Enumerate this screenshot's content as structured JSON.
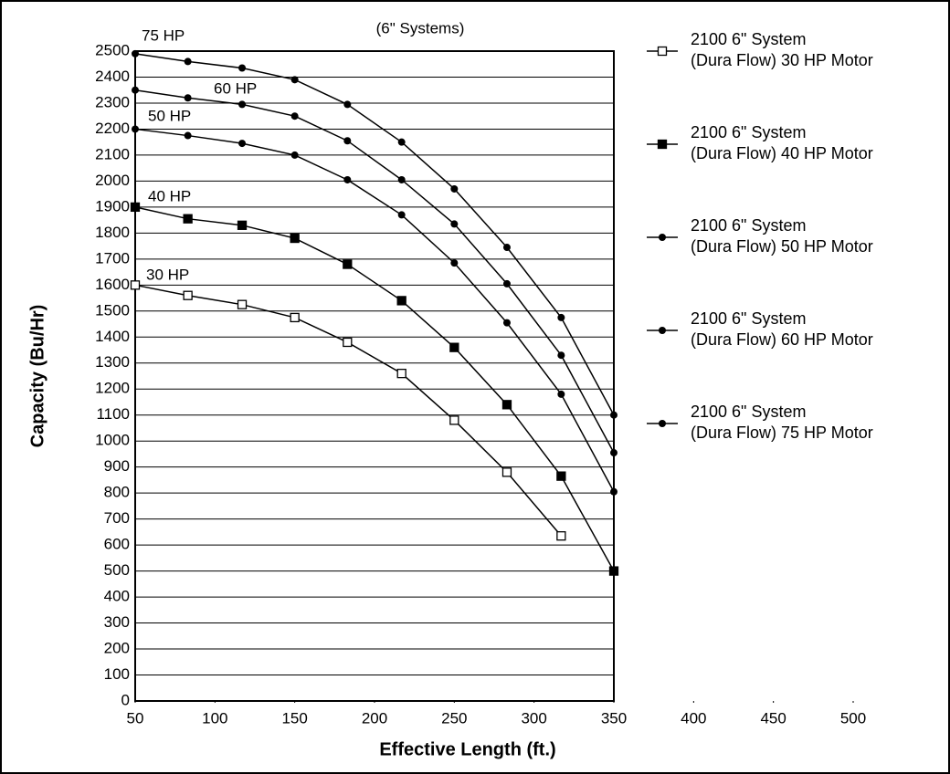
{
  "chart_data": {
    "type": "line",
    "title": "(6\" Systems)",
    "x_label": "Effective Length (ft.)",
    "y_label": "Capacity (Bu/Hr)",
    "x": [
      50,
      83,
      117,
      150,
      183,
      217,
      250,
      283,
      317,
      350
    ],
    "xlim": [
      50,
      500
    ],
    "xticks": [
      50,
      100,
      150,
      200,
      250,
      300,
      350,
      400,
      450,
      500
    ],
    "ylim": [
      0,
      2500
    ],
    "yticks": [
      0,
      100,
      200,
      300,
      400,
      500,
      600,
      700,
      800,
      900,
      1000,
      1100,
      1200,
      1300,
      1400,
      1500,
      1600,
      1700,
      1800,
      1900,
      2000,
      2100,
      2200,
      2300,
      2400,
      2500
    ],
    "grid": true,
    "series": [
      {
        "name": "2100 6\" System\n(Dura Flow) 30 HP Motor",
        "color": "#000000",
        "marker": "open-square",
        "annotation": "30 HP",
        "values": [
          1600,
          1560,
          1525,
          1475,
          1380,
          1260,
          1080,
          880,
          635,
          null
        ]
      },
      {
        "name": "2100 6\" System\n(Dura Flow) 40 HP Motor",
        "color": "#000000",
        "marker": "square",
        "annotation": "40 HP",
        "values": [
          1900,
          1855,
          1830,
          1780,
          1680,
          1540,
          1360,
          1140,
          865,
          500
        ]
      },
      {
        "name": "2100 6\" System\n(Dura Flow) 50 HP Motor",
        "color": "#000000",
        "marker": "circle",
        "annotation": "50 HP",
        "values": [
          2200,
          2175,
          2145,
          2100,
          2005,
          1870,
          1685,
          1455,
          1180,
          805
        ]
      },
      {
        "name": "2100 6\" System\n(Dura Flow) 60 HP Motor",
        "color": "#000000",
        "marker": "circle",
        "annotation": "60 HP",
        "values": [
          2350,
          2320,
          2295,
          2250,
          2155,
          2005,
          1835,
          1605,
          1330,
          955
        ]
      },
      {
        "name": "2100 6\" System\n(Dura Flow) 75 HP Motor",
        "color": "#000000",
        "marker": "circle",
        "annotation": "75 HP",
        "values": [
          2490,
          2460,
          2435,
          2390,
          2295,
          2150,
          1970,
          1745,
          1475,
          1100
        ]
      }
    ]
  }
}
